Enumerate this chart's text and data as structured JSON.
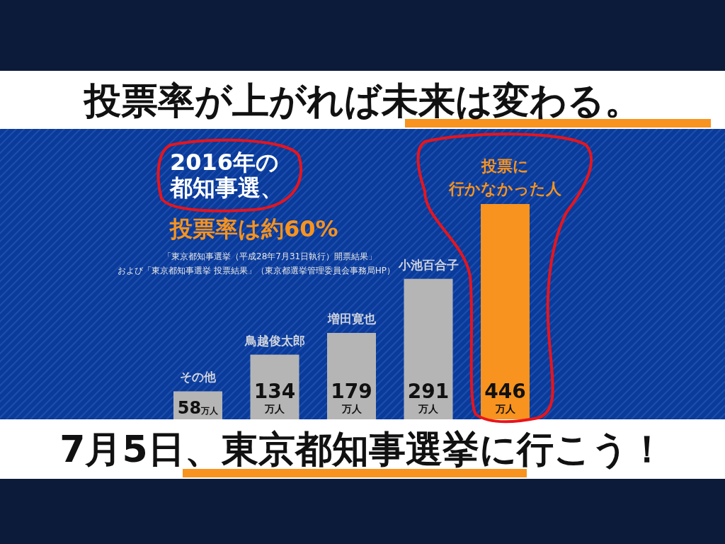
{
  "chart_data": {
    "type": "bar",
    "title": "投票率が上がれば未来は変わる。",
    "annotations": [
      "7月5日、東京都知事選挙に行こう！",
      "2016年の",
      "都知事選、",
      "投票率は約60%",
      "「東京都知事選挙（平成28年7月31日執行）開票結果」",
      "および「東京都知事選挙 投票結果」（東京都選挙管理委員会事務局HP）"
    ],
    "categories": [
      "その他",
      "鳥越俊太郎",
      "増田寛也",
      "小池百合子",
      "投票に行かなかった人"
    ],
    "values": [
      58,
      134,
      179,
      291,
      446
    ],
    "value_labels": [
      "58万人",
      "134$_{万人}$",
      "179$_{万人}$",
      "291$_{万人}$",
      "446$_{万人}$"
    ],
    "colors": [
      "#b5b5b5",
      "#b5b5b5",
      "#b5b5b5",
      "#b5b5b5",
      "#f7931e"
    ]
  }
}
